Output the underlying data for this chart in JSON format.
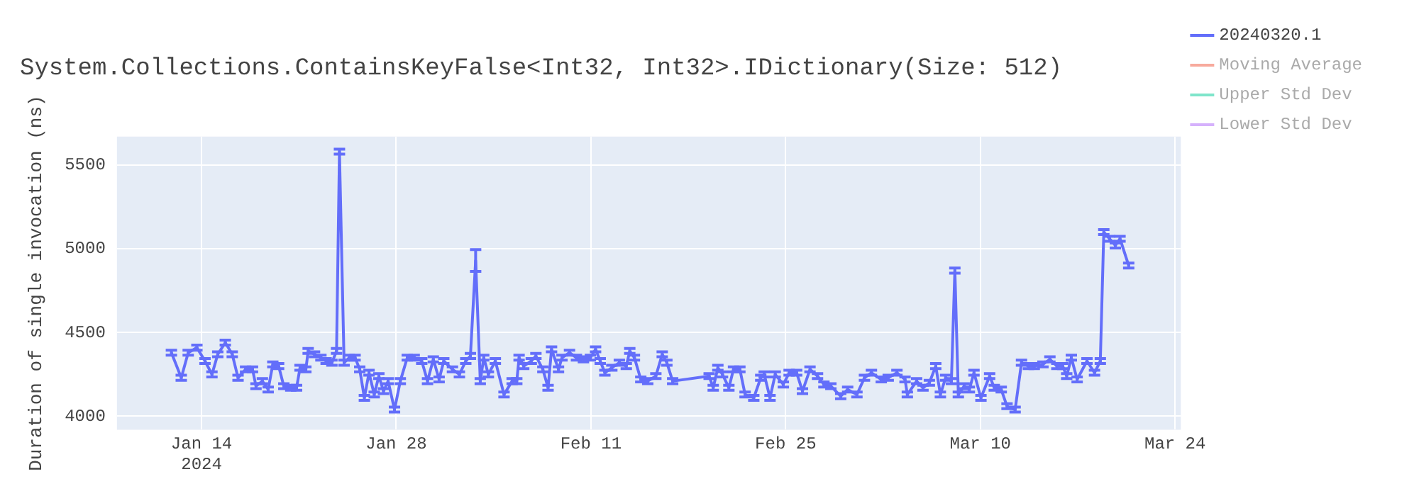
{
  "chart_data": {
    "type": "line",
    "title": "System.Collections.ContainsKeyFalse<Int32, Int32>.IDictionary(Size: 512)",
    "ylabel": "Duration of single invocation (ns)",
    "xlim": [
      "2024-01-07T22:00",
      "2024-03-24T10:00"
    ],
    "xticks": [
      {
        "value": "2024-01-14T00:00",
        "label": "Jan 14\n2024"
      },
      {
        "value": "2024-01-28T00:00",
        "label": "Jan 28"
      },
      {
        "value": "2024-02-11T00:00",
        "label": "Feb 11"
      },
      {
        "value": "2024-02-25T00:00",
        "label": "Feb 25"
      },
      {
        "value": "2024-03-10T00:00",
        "label": "Mar 10"
      },
      {
        "value": "2024-03-24T00:00",
        "label": "Mar 24"
      }
    ],
    "ylim": [
      3920,
      5670
    ],
    "yticks": [
      4000,
      4500,
      5000,
      5500
    ],
    "grid": true,
    "legend": "top right",
    "marker": "none",
    "line_style": "solid",
    "x": [
      "2024-01-11T20:00",
      "2024-01-12T13:00",
      "2024-01-13T01:00",
      "2024-01-13T16:00",
      "2024-01-14T06:00",
      "2024-01-14T18:00",
      "2024-01-15T04:00",
      "2024-01-15T17:00",
      "2024-01-16T05:00",
      "2024-01-16T15:00",
      "2024-01-17T04:00",
      "2024-01-17T16:00",
      "2024-01-17T22:00",
      "2024-01-18T09:00",
      "2024-01-18T19:00",
      "2024-01-19T03:00",
      "2024-01-19T13:00",
      "2024-01-19T22:00",
      "2024-01-20T10:00",
      "2024-01-20T20:00",
      "2024-01-21T02:00",
      "2024-01-21T12:00",
      "2024-01-21T16:00",
      "2024-01-22T03:00",
      "2024-01-22T14:00",
      "2024-01-22T23:00",
      "2024-01-23T09:00",
      "2024-01-23T17:00",
      "2024-01-23T22:00",
      "2024-01-24T06:00",
      "2024-01-24T15:00",
      "2024-01-25T01:00",
      "2024-01-25T09:00",
      "2024-01-25T17:00",
      "2024-01-26T01:00",
      "2024-01-26T10:00",
      "2024-01-26T18:00",
      "2024-01-27T02:00",
      "2024-01-27T10:00",
      "2024-01-27T21:00",
      "2024-01-28T07:00",
      "2024-01-28T19:00",
      "2024-01-29T07:00",
      "2024-01-29T20:00",
      "2024-01-30T06:00",
      "2024-01-30T16:00",
      "2024-01-31T02:00",
      "2024-01-31T10:00",
      "2024-02-01T01:00",
      "2024-02-01T13:00",
      "2024-02-02T00:00",
      "2024-02-02T08:00",
      "2024-02-02T17:00",
      "2024-02-03T01:00",
      "2024-02-03T07:00",
      "2024-02-03T15:00",
      "2024-02-04T03:00",
      "2024-02-04T18:00",
      "2024-02-05T08:00",
      "2024-02-05T16:00",
      "2024-02-05T20:00",
      "2024-02-06T04:00",
      "2024-02-06T17:00",
      "2024-02-07T01:00",
      "2024-02-07T13:00",
      "2024-02-07T22:00",
      "2024-02-08T04:00",
      "2024-02-08T16:00",
      "2024-02-08T22:00",
      "2024-02-09T11:00",
      "2024-02-09T23:00",
      "2024-02-10T11:00",
      "2024-02-10T23:00",
      "2024-02-11T08:00",
      "2024-02-11T16:00",
      "2024-02-12T00:00",
      "2024-02-12T12:00",
      "2024-02-13T01:00",
      "2024-02-13T13:00",
      "2024-02-13T19:00",
      "2024-02-14T03:00",
      "2024-02-14T14:00",
      "2024-02-15T02:00",
      "2024-02-15T16:00",
      "2024-02-16T03:00",
      "2024-02-16T11:00",
      "2024-02-16T21:00",
      "2024-02-19T12:00",
      "2024-02-19T19:00",
      "2024-02-20T03:00",
      "2024-02-20T11:00",
      "2024-02-20T22:00",
      "2024-02-21T06:00",
      "2024-02-21T17:00",
      "2024-02-22T02:00",
      "2024-02-22T17:00",
      "2024-02-23T05:00",
      "2024-02-23T11:00",
      "2024-02-23T21:00",
      "2024-02-24T06:00",
      "2024-02-24T20:00",
      "2024-02-25T06:00",
      "2024-02-25T19:00",
      "2024-02-26T05:00",
      "2024-02-26T18:00",
      "2024-02-27T07:00",
      "2024-02-27T18:00",
      "2024-02-28T06:00",
      "2024-02-28T23:00",
      "2024-02-29T11:00",
      "2024-03-01T03:00",
      "2024-03-01T16:00",
      "2024-03-02T04:00",
      "2024-03-02T21:00",
      "2024-03-03T09:00",
      "2024-03-04T00:00",
      "2024-03-04T14:00",
      "2024-03-04T18:00",
      "2024-03-05T10:00",
      "2024-03-05T21:00",
      "2024-03-06T08:00",
      "2024-03-06T19:00",
      "2024-03-07T03:00",
      "2024-03-07T12:00",
      "2024-03-07T22:00",
      "2024-03-08T04:00",
      "2024-03-08T10:00",
      "2024-03-08T20:00",
      "2024-03-09T05:00",
      "2024-03-09T13:00",
      "2024-03-10T01:00",
      "2024-03-10T16:00",
      "2024-03-11T00:00",
      "2024-03-11T12:00",
      "2024-03-11T22:00",
      "2024-03-12T12:00",
      "2024-03-12T23:00",
      "2024-03-13T11:00",
      "2024-03-13T21:00",
      "2024-03-14T12:00",
      "2024-03-15T00:00",
      "2024-03-15T12:00",
      "2024-03-15T22:00",
      "2024-03-16T05:00",
      "2024-03-16T13:00",
      "2024-03-16T23:00",
      "2024-03-17T16:00",
      "2024-03-18T05:00",
      "2024-03-18T15:00",
      "2024-03-18T21:00",
      "2024-03-19T07:00",
      "2024-03-19T17:00",
      "2024-03-20T01:00",
      "2024-03-20T16:00"
    ],
    "series": [
      {
        "name": "20240320.1",
        "color": "#636efa",
        "values": [
          4380,
          4230,
          4380,
          4410,
          4330,
          4250,
          4370,
          4440,
          4370,
          4230,
          4280,
          4280,
          4180,
          4210,
          4160,
          4310,
          4300,
          4180,
          4170,
          4170,
          4290,
          4280,
          4390,
          4370,
          4350,
          4330,
          4320,
          4390,
          5580,
          4320,
          4350,
          4350,
          4280,
          4110,
          4260,
          4130,
          4240,
          4150,
          4210,
          4040,
          4210,
          4350,
          4350,
          4330,
          4210,
          4340,
          4220,
          4330,
          4280,
          4250,
          4330,
          4360,
          4930,
          4210,
          4350,
          4250,
          4330,
          4130,
          4210,
          4210,
          4350,
          4300,
          4330,
          4360,
          4280,
          4170,
          4400,
          4280,
          4350,
          4380,
          4350,
          4340,
          4350,
          4400,
          4330,
          4260,
          4290,
          4320,
          4300,
          4390,
          4350,
          4220,
          4210,
          4240,
          4370,
          4320,
          4210,
          4240,
          4170,
          4290,
          4250,
          4170,
          4280,
          4280,
          4130,
          4110,
          4230,
          4250,
          4110,
          4250,
          4190,
          4260,
          4260,
          4150,
          4280,
          4240,
          4190,
          4180,
          4120,
          4160,
          4130,
          4230,
          4260,
          4220,
          4230,
          4260,
          4220,
          4130,
          4210,
          4170,
          4200,
          4300,
          4130,
          4230,
          4210,
          4870,
          4130,
          4180,
          4160,
          4260,
          4110,
          4240,
          4170,
          4160,
          4060,
          4040,
          4320,
          4300,
          4300,
          4310,
          4340,
          4300,
          4300,
          4240,
          4350,
          4220,
          4330,
          4260,
          4330,
          5100,
          5060,
          5020,
          5060,
          4900
        ],
        "errors": [
          15,
          15,
          15,
          15,
          15,
          15,
          15,
          15,
          15,
          15,
          15,
          15,
          15,
          15,
          15,
          15,
          15,
          15,
          15,
          15,
          15,
          15,
          15,
          15,
          15,
          15,
          15,
          15,
          15,
          15,
          15,
          15,
          15,
          15,
          15,
          15,
          15,
          15,
          15,
          15,
          15,
          15,
          15,
          15,
          15,
          15,
          15,
          15,
          15,
          15,
          15,
          15,
          65,
          15,
          15,
          15,
          15,
          15,
          15,
          15,
          15,
          15,
          15,
          15,
          15,
          15,
          15,
          15,
          15,
          15,
          15,
          15,
          15,
          15,
          15,
          15,
          15,
          15,
          15,
          15,
          15,
          15,
          15,
          15,
          15,
          15,
          15,
          15,
          15,
          15,
          15,
          15,
          15,
          15,
          15,
          15,
          15,
          15,
          15,
          15,
          15,
          15,
          15,
          15,
          15,
          15,
          15,
          15,
          15,
          15,
          15,
          15,
          15,
          15,
          15,
          15,
          15,
          15,
          15,
          15,
          15,
          15,
          15,
          15,
          15,
          15,
          15,
          15,
          15,
          15,
          15,
          15,
          15,
          15,
          15,
          15,
          15,
          15,
          15,
          15,
          15,
          15,
          15,
          15,
          15,
          15,
          15,
          15,
          15,
          15,
          15,
          15,
          15,
          15
        ]
      },
      {
        "name": "Moving Average",
        "color": "#ef553b",
        "values": [
          null,
          null,
          null,
          null,
          null,
          null,
          null,
          null,
          null,
          null,
          null,
          null,
          null,
          null,
          null,
          null,
          null,
          null,
          null,
          null,
          null,
          null,
          null,
          null,
          null,
          null,
          null,
          null,
          null,
          null,
          null,
          null,
          null,
          null,
          null,
          null,
          null,
          null,
          null,
          null,
          null,
          null,
          null,
          null,
          null,
          null,
          null,
          null,
          null,
          null,
          null,
          null,
          null,
          null,
          null,
          null,
          null,
          null,
          null,
          null,
          null,
          null,
          null,
          null,
          null,
          null,
          null,
          null,
          null,
          null,
          null,
          null,
          null,
          null,
          null,
          null,
          null,
          null,
          null,
          null,
          null,
          null,
          null,
          null,
          null,
          null,
          null,
          null,
          null,
          null,
          null,
          null,
          null,
          null,
          null,
          null,
          null,
          null,
          null,
          null,
          null,
          null,
          null,
          null,
          null,
          null,
          null,
          null,
          null,
          null,
          null,
          null,
          null,
          null,
          null,
          null,
          null,
          null,
          null,
          null,
          null,
          null,
          null,
          null,
          null,
          null,
          null,
          null,
          null,
          null,
          null,
          null,
          null,
          null,
          null,
          null,
          null,
          null,
          null,
          null,
          null,
          null,
          null,
          null,
          null,
          null,
          null,
          null,
          null,
          null,
          null,
          null,
          null,
          null
        ]
      },
      {
        "name": "Upper Std Dev",
        "color": "#00cc96",
        "values": [
          null,
          null,
          null,
          null,
          null,
          null,
          null,
          null,
          null,
          null,
          null,
          null,
          null,
          null,
          null,
          null,
          null,
          null,
          null,
          null,
          null,
          null,
          null,
          null,
          null,
          null,
          null,
          null,
          null,
          null,
          null,
          null,
          null,
          null,
          null,
          null,
          null,
          null,
          null,
          null,
          null,
          null,
          null,
          null,
          null,
          null,
          null,
          null,
          null,
          null,
          null,
          null,
          null,
          null,
          null,
          null,
          null,
          null,
          null,
          null,
          null,
          null,
          null,
          null,
          null,
          null,
          null,
          null,
          null,
          null,
          null,
          null,
          null,
          null,
          null,
          null,
          null,
          null,
          null,
          null,
          null,
          null,
          null,
          null,
          null,
          null,
          null,
          null,
          null,
          null,
          null,
          null,
          null,
          null,
          null,
          null,
          null,
          null,
          null,
          null,
          null,
          null,
          null,
          null,
          null,
          null,
          null,
          null,
          null,
          null,
          null,
          null,
          null,
          null,
          null,
          null,
          null,
          null,
          null,
          null,
          null,
          null,
          null,
          null,
          null,
          null,
          null,
          null,
          null,
          null,
          null,
          null,
          null,
          null,
          null,
          null,
          null,
          null,
          null,
          null,
          null,
          null,
          null,
          null,
          null,
          null,
          null,
          null,
          null,
          null,
          null,
          null,
          null,
          null
        ]
      },
      {
        "name": "Lower Std Dev",
        "color": "#ab63fa",
        "values": [
          null,
          null,
          null,
          null,
          null,
          null,
          null,
          null,
          null,
          null,
          null,
          null,
          null,
          null,
          null,
          null,
          null,
          null,
          null,
          null,
          null,
          null,
          null,
          null,
          null,
          null,
          null,
          null,
          null,
          null,
          null,
          null,
          null,
          null,
          null,
          null,
          null,
          null,
          null,
          null,
          null,
          null,
          null,
          null,
          null,
          null,
          null,
          null,
          null,
          null,
          null,
          null,
          null,
          null,
          null,
          null,
          null,
          null,
          null,
          null,
          null,
          null,
          null,
          null,
          null,
          null,
          null,
          null,
          null,
          null,
          null,
          null,
          null,
          null,
          null,
          null,
          null,
          null,
          null,
          null,
          null,
          null,
          null,
          null,
          null,
          null,
          null,
          null,
          null,
          null,
          null,
          null,
          null,
          null,
          null,
          null,
          null,
          null,
          null,
          null,
          null,
          null,
          null,
          null,
          null,
          null,
          null,
          null,
          null,
          null,
          null,
          null,
          null,
          null,
          null,
          null,
          null,
          null,
          null,
          null,
          null,
          null,
          null,
          null,
          null,
          null,
          null,
          null,
          null,
          null,
          null,
          null,
          null,
          null,
          null,
          null,
          null,
          null,
          null,
          null,
          null,
          null,
          null,
          null,
          null,
          null,
          null,
          null,
          null,
          null,
          null,
          null,
          null,
          null
        ]
      }
    ]
  }
}
